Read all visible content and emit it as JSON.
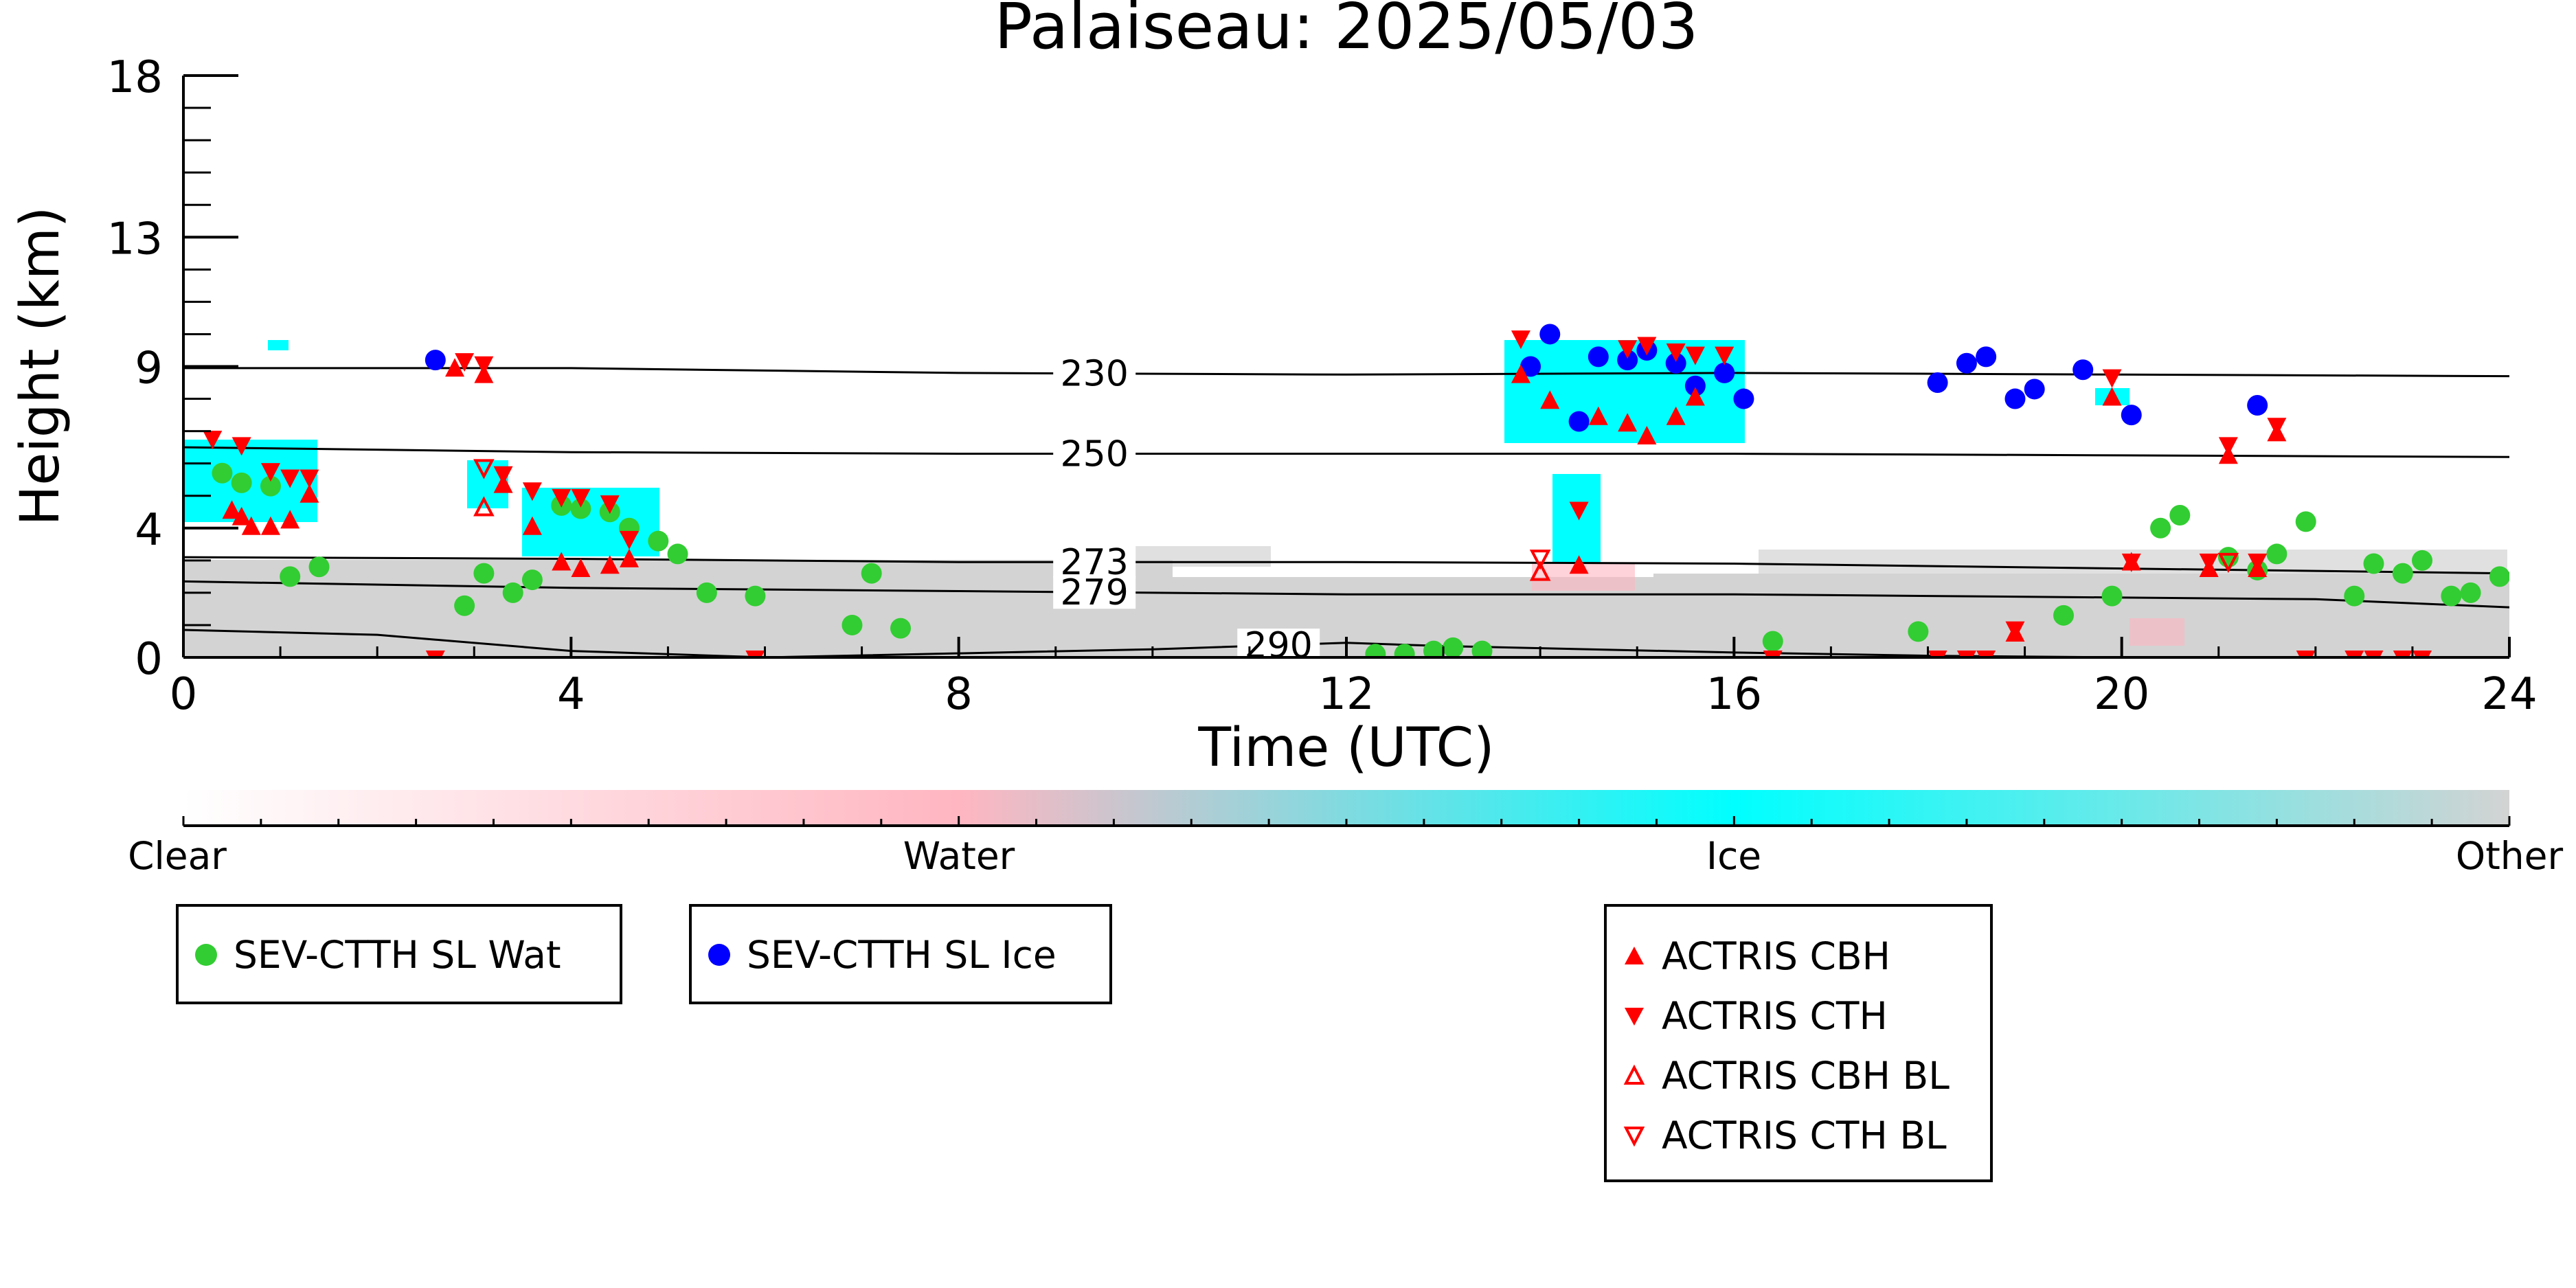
{
  "chart_data": {
    "type": "scatter",
    "title": "Palaiseau: 2025/05/03",
    "xlabel": "Time (UTC)",
    "ylabel": "Height (km)",
    "xlim": [
      0,
      24
    ],
    "ylim": [
      0,
      18
    ],
    "x_ticks": [
      "0",
      "4",
      "8",
      "12",
      "16",
      "20",
      "24"
    ],
    "y_ticks": [
      "0",
      "4",
      "9",
      "13",
      "18"
    ],
    "colorbar": {
      "labels": [
        "Clear",
        "Water",
        "Ice",
        "Other"
      ],
      "colors": [
        "#ffffff",
        "#ffb6c1",
        "#00ffff",
        "#d3d3d3"
      ]
    },
    "contours": [
      {
        "label": "230",
        "points": [
          [
            0,
            8.95
          ],
          [
            4,
            8.95
          ],
          [
            8,
            8.8
          ],
          [
            12,
            8.75
          ],
          [
            16,
            8.8
          ],
          [
            20,
            8.75
          ],
          [
            24,
            8.7
          ]
        ]
      },
      {
        "label": "250",
        "points": [
          [
            0,
            6.5
          ],
          [
            4,
            6.35
          ],
          [
            8,
            6.3
          ],
          [
            12,
            6.3
          ],
          [
            16,
            6.3
          ],
          [
            20,
            6.25
          ],
          [
            24,
            6.2
          ]
        ]
      },
      {
        "label": "273",
        "points": [
          [
            0,
            3.1
          ],
          [
            4,
            3.05
          ],
          [
            8,
            2.95
          ],
          [
            12,
            2.95
          ],
          [
            16,
            2.9
          ],
          [
            20,
            2.75
          ],
          [
            24,
            2.6
          ]
        ]
      },
      {
        "label": "279",
        "points": [
          [
            0,
            2.35
          ],
          [
            4,
            2.15
          ],
          [
            8,
            2.05
          ],
          [
            12,
            1.95
          ],
          [
            16,
            1.95
          ],
          [
            20,
            1.85
          ],
          [
            22,
            1.8
          ],
          [
            24,
            1.55
          ]
        ]
      },
      {
        "label": "290",
        "points": [
          [
            0,
            0.85
          ],
          [
            2,
            0.7
          ],
          [
            4,
            0.2
          ],
          [
            6,
            0.0
          ],
          [
            10,
            0.25
          ],
          [
            12,
            0.45
          ],
          [
            13,
            0.35
          ],
          [
            16,
            0.15
          ],
          [
            18,
            0.05
          ],
          [
            20,
            0.0
          ]
        ]
      }
    ],
    "series": [
      {
        "name": "SEV-CTTH SL Wat",
        "color": "#32cd32",
        "marker": "circle",
        "points": [
          [
            0.4,
            5.7
          ],
          [
            0.6,
            5.4
          ],
          [
            0.9,
            5.3
          ],
          [
            1.1,
            2.5
          ],
          [
            1.4,
            2.8
          ],
          [
            2.9,
            1.6
          ],
          [
            3.1,
            2.6
          ],
          [
            3.4,
            2.0
          ],
          [
            3.6,
            2.4
          ],
          [
            3.9,
            4.7
          ],
          [
            4.1,
            4.6
          ],
          [
            4.4,
            4.5
          ],
          [
            4.6,
            4.0
          ],
          [
            4.9,
            3.6
          ],
          [
            5.1,
            3.2
          ],
          [
            5.4,
            2.0
          ],
          [
            5.9,
            1.9
          ],
          [
            6.9,
            1.0
          ],
          [
            7.1,
            2.6
          ],
          [
            7.4,
            0.9
          ],
          [
            12.3,
            0.1
          ],
          [
            12.6,
            0.1
          ],
          [
            12.9,
            0.2
          ],
          [
            13.1,
            0.3
          ],
          [
            13.4,
            0.2
          ],
          [
            16.4,
            0.5
          ],
          [
            17.9,
            0.8
          ],
          [
            19.4,
            1.3
          ],
          [
            19.9,
            1.9
          ],
          [
            20.4,
            4.0
          ],
          [
            20.6,
            4.4
          ],
          [
            21.1,
            3.1
          ],
          [
            21.4,
            2.7
          ],
          [
            21.6,
            3.2
          ],
          [
            21.9,
            4.2
          ],
          [
            22.4,
            1.9
          ],
          [
            22.6,
            2.9
          ],
          [
            22.9,
            2.6
          ],
          [
            23.1,
            3.0
          ],
          [
            23.4,
            1.9
          ],
          [
            23.6,
            2.0
          ],
          [
            23.9,
            2.5
          ]
        ]
      },
      {
        "name": "SEV-CTTH SL Ice",
        "color": "#0000ff",
        "marker": "circle",
        "points": [
          [
            2.6,
            9.2
          ],
          [
            13.9,
            9.0
          ],
          [
            14.1,
            10.0
          ],
          [
            14.4,
            7.3
          ],
          [
            14.6,
            9.3
          ],
          [
            14.9,
            9.2
          ],
          [
            15.1,
            9.5
          ],
          [
            15.4,
            9.1
          ],
          [
            15.6,
            8.4
          ],
          [
            15.9,
            8.8
          ],
          [
            16.1,
            8.0
          ],
          [
            18.1,
            8.5
          ],
          [
            18.4,
            9.1
          ],
          [
            18.6,
            9.3
          ],
          [
            18.9,
            8.0
          ],
          [
            19.1,
            8.3
          ],
          [
            19.6,
            8.9
          ],
          [
            20.1,
            7.5
          ],
          [
            21.4,
            7.8
          ]
        ]
      },
      {
        "name": "ACTRIS CBH",
        "color": "#ff0000",
        "marker": "triangle-up",
        "points": [
          [
            0.5,
            4.5
          ],
          [
            0.6,
            4.3
          ],
          [
            0.7,
            4.0
          ],
          [
            0.9,
            4.0
          ],
          [
            1.1,
            4.2
          ],
          [
            1.3,
            5.0
          ],
          [
            2.8,
            8.9
          ],
          [
            3.1,
            8.7
          ],
          [
            3.3,
            5.3
          ],
          [
            3.6,
            4.0
          ],
          [
            3.9,
            2.9
          ],
          [
            4.1,
            2.7
          ],
          [
            4.4,
            2.8
          ],
          [
            4.6,
            3.0
          ],
          [
            13.8,
            8.7
          ],
          [
            14.1,
            7.9
          ],
          [
            14.4,
            2.8
          ],
          [
            14.6,
            7.4
          ],
          [
            14.9,
            7.2
          ],
          [
            15.1,
            6.8
          ],
          [
            15.4,
            7.4
          ],
          [
            15.6,
            8.0
          ],
          [
            19.9,
            8.0
          ],
          [
            20.1,
            2.9
          ],
          [
            20.9,
            2.7
          ],
          [
            21.1,
            6.2
          ],
          [
            21.4,
            2.7
          ],
          [
            21.6,
            6.9
          ],
          [
            18.9,
            0.7
          ]
        ]
      },
      {
        "name": "ACTRIS CTH",
        "color": "#ff0000",
        "marker": "triangle-down",
        "points": [
          [
            0.3,
            6.8
          ],
          [
            0.6,
            6.6
          ],
          [
            0.9,
            5.8
          ],
          [
            1.1,
            5.6
          ],
          [
            1.3,
            5.6
          ],
          [
            2.6,
            0.0
          ],
          [
            2.9,
            9.2
          ],
          [
            3.1,
            9.1
          ],
          [
            3.3,
            5.7
          ],
          [
            3.6,
            5.2
          ],
          [
            3.9,
            5.0
          ],
          [
            4.1,
            5.0
          ],
          [
            4.4,
            4.8
          ],
          [
            4.6,
            3.7
          ],
          [
            5.9,
            0.0
          ],
          [
            13.8,
            9.9
          ],
          [
            14.4,
            4.6
          ],
          [
            14.9,
            9.6
          ],
          [
            15.1,
            9.7
          ],
          [
            15.4,
            9.5
          ],
          [
            15.6,
            9.4
          ],
          [
            15.9,
            9.4
          ],
          [
            16.4,
            0.0
          ],
          [
            18.1,
            0.0
          ],
          [
            18.4,
            0.0
          ],
          [
            18.6,
            0.0
          ],
          [
            18.9,
            0.9
          ],
          [
            19.9,
            8.7
          ],
          [
            20.1,
            3.0
          ],
          [
            20.9,
            3.0
          ],
          [
            21.1,
            6.6
          ],
          [
            21.4,
            3.0
          ],
          [
            21.6,
            7.2
          ],
          [
            21.9,
            0.0
          ],
          [
            22.4,
            0.0
          ],
          [
            22.6,
            0.0
          ],
          [
            22.9,
            0.0
          ],
          [
            23.1,
            0.0
          ]
        ]
      },
      {
        "name": "ACTRIS CBH BL",
        "color": "#ff0000",
        "marker": "triangle-up-open",
        "points": [
          [
            3.1,
            4.6
          ],
          [
            14.0,
            2.6
          ]
        ]
      },
      {
        "name": "ACTRIS CTH BL",
        "color": "#ff0000",
        "marker": "triangle-down-open",
        "points": [
          [
            3.1,
            5.9
          ],
          [
            14.0,
            3.1
          ],
          [
            21.1,
            3.0
          ]
        ]
      }
    ]
  }
}
